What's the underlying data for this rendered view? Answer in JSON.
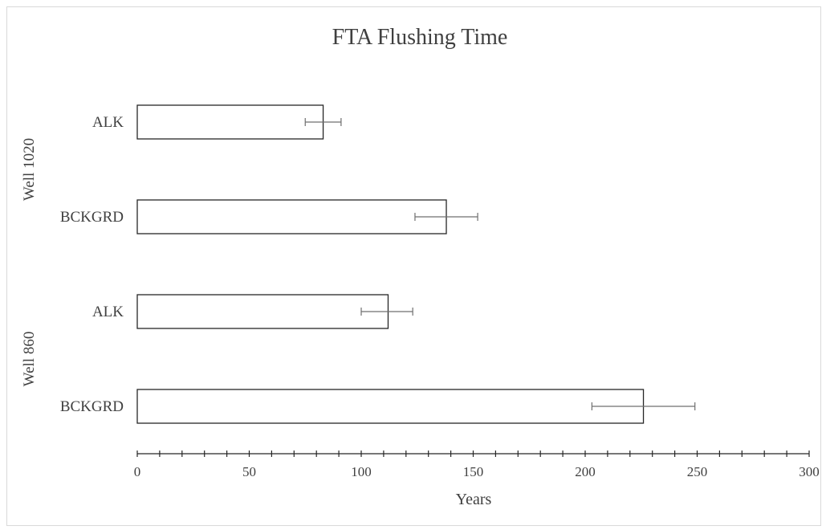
{
  "chart_data": {
    "type": "bar",
    "orientation": "horizontal",
    "title": "FTA Flushing Time",
    "xlabel": "Years",
    "ylabel": "",
    "xlim": [
      0,
      300
    ],
    "xticks": [
      0,
      50,
      100,
      150,
      200,
      250,
      300
    ],
    "minor_tick_step": 10,
    "grid": false,
    "legend": "none",
    "groups": [
      {
        "name": "Well 1020",
        "bars": [
          {
            "category": "ALK",
            "value": 83,
            "error_low": 75,
            "error_high": 91
          },
          {
            "category": "BCKGRD",
            "value": 138,
            "error_low": 124,
            "error_high": 152
          }
        ]
      },
      {
        "name": "Well 860",
        "bars": [
          {
            "category": "ALK",
            "value": 112,
            "error_low": 100,
            "error_high": 123
          },
          {
            "category": "BCKGRD",
            "value": 226,
            "error_low": 203,
            "error_high": 249
          }
        ]
      }
    ],
    "colors": {
      "bar_fill": "#ffffff",
      "bar_stroke": "#262626",
      "error_bar": "#6f6f6f",
      "text": "#404040"
    }
  }
}
